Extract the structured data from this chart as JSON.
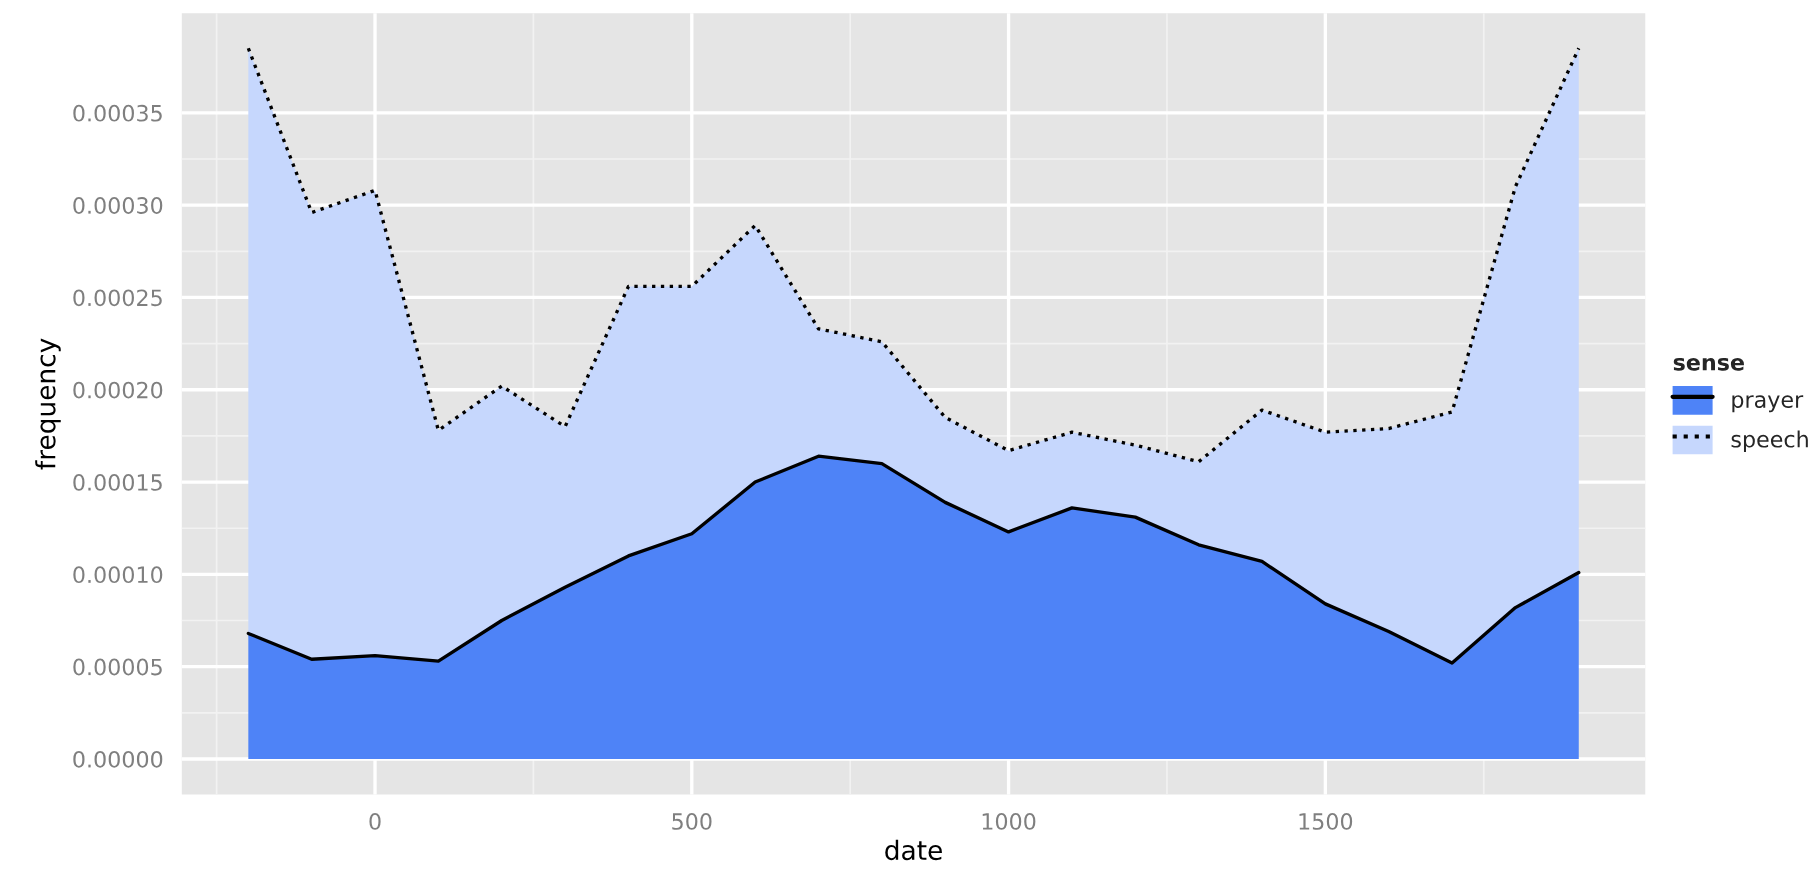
{
  "chart_data": {
    "type": "area",
    "stacked": true,
    "xlabel": "date",
    "ylabel": "frequency",
    "legend_title": "sense",
    "legend": "right",
    "grid": true,
    "x": [
      -200,
      -100,
      0,
      100,
      200,
      300,
      400,
      500,
      600,
      700,
      800,
      900,
      1000,
      1100,
      1200,
      1300,
      1400,
      1500,
      1600,
      1700,
      1800,
      1900
    ],
    "series": [
      {
        "name": "prayer",
        "color": "#4e83f7",
        "line_style": "solid",
        "values": [
          6.8e-05,
          5.4e-05,
          5.6e-05,
          5.3e-05,
          7.5e-05,
          9.3e-05,
          0.00011,
          0.000122,
          0.00015,
          0.000164,
          0.00016,
          0.000139,
          0.000123,
          0.000136,
          0.000131,
          0.000116,
          0.000107,
          8.4e-05,
          6.9e-05,
          5.2e-05,
          8.2e-05,
          0.000101
        ]
      },
      {
        "name": "speech",
        "color": "#c6d7fd",
        "line_style": "dotted",
        "values": [
          0.000317,
          0.000242,
          0.000252,
          0.000125,
          0.000127,
          8.7e-05,
          0.000146,
          0.000134,
          0.000139,
          6.9e-05,
          6.6e-05,
          4.6e-05,
          4.4e-05,
          4.1e-05,
          3.9e-05,
          4.5e-05,
          8.2e-05,
          9.3e-05,
          0.00011,
          0.000136,
          0.000228,
          0.000284
        ]
      }
    ],
    "xlim": [
      -305,
      2005
    ],
    "xticks": [
      0,
      500,
      1000,
      1500
    ],
    "ylim": [
      -1.93e-05,
      0.000404
    ],
    "yticks": [
      {
        "value": 0,
        "label": "0.00000"
      },
      {
        "value": 5e-05,
        "label": "0.00005"
      },
      {
        "value": 0.0001,
        "label": "0.00010"
      },
      {
        "value": 0.00015,
        "label": "0.00015"
      },
      {
        "value": 0.0002,
        "label": "0.00020"
      },
      {
        "value": 0.00025,
        "label": "0.00025"
      },
      {
        "value": 0.0003,
        "label": "0.00030"
      },
      {
        "value": 0.00035,
        "label": "0.00035"
      }
    ]
  }
}
